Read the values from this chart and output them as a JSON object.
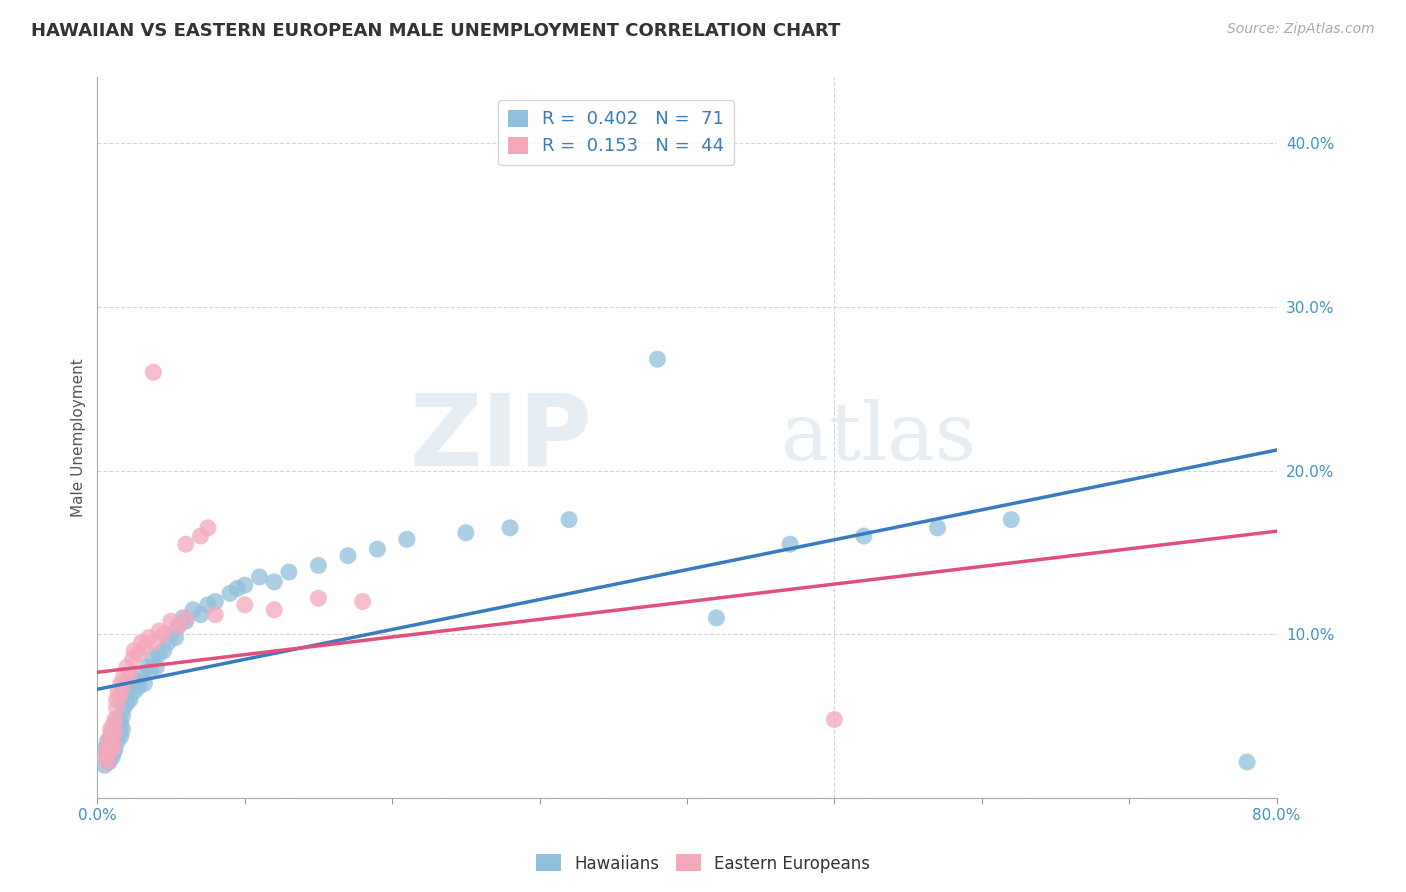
{
  "title": "HAWAIIAN VS EASTERN EUROPEAN MALE UNEMPLOYMENT CORRELATION CHART",
  "source": "Source: ZipAtlas.com",
  "ylabel": "Male Unemployment",
  "xmin": 0.0,
  "xmax": 0.8,
  "ymin": 0.0,
  "ymax": 0.44,
  "yticks": [
    0.0,
    0.1,
    0.2,
    0.3,
    0.4
  ],
  "ytick_labels": [
    "",
    "10.0%",
    "20.0%",
    "30.0%",
    "40.0%"
  ],
  "xticks": [
    0.0,
    0.8
  ],
  "legend_r1": "R =  0.402",
  "legend_n1": "N =  71",
  "legend_r2": "R =  0.153",
  "legend_n2": "N =  44",
  "blue_color": "#92bfdc",
  "pink_color": "#f4a8bc",
  "line_blue": "#3a7abf",
  "line_pink": "#e0507a",
  "watermark_zip": "ZIP",
  "watermark_atlas": "atlas",
  "hawaiians_x": [
    0.005,
    0.005,
    0.007,
    0.007,
    0.008,
    0.008,
    0.009,
    0.009,
    0.01,
    0.01,
    0.01,
    0.011,
    0.011,
    0.012,
    0.012,
    0.013,
    0.013,
    0.014,
    0.014,
    0.015,
    0.015,
    0.016,
    0.016,
    0.017,
    0.017,
    0.018,
    0.02,
    0.02,
    0.022,
    0.023,
    0.025,
    0.026,
    0.028,
    0.03,
    0.032,
    0.034,
    0.036,
    0.038,
    0.04,
    0.042,
    0.045,
    0.048,
    0.05,
    0.053,
    0.055,
    0.058,
    0.06,
    0.065,
    0.07,
    0.075,
    0.08,
    0.09,
    0.095,
    0.1,
    0.11,
    0.12,
    0.13,
    0.15,
    0.17,
    0.19,
    0.21,
    0.25,
    0.28,
    0.32,
    0.38,
    0.42,
    0.47,
    0.52,
    0.57,
    0.62,
    0.78
  ],
  "hawaiians_y": [
    0.02,
    0.03,
    0.025,
    0.035,
    0.028,
    0.022,
    0.03,
    0.038,
    0.025,
    0.032,
    0.04,
    0.028,
    0.035,
    0.042,
    0.03,
    0.038,
    0.045,
    0.035,
    0.042,
    0.04,
    0.048,
    0.038,
    0.045,
    0.042,
    0.05,
    0.055,
    0.058,
    0.065,
    0.06,
    0.07,
    0.065,
    0.072,
    0.068,
    0.075,
    0.07,
    0.08,
    0.078,
    0.085,
    0.08,
    0.088,
    0.09,
    0.095,
    0.1,
    0.098,
    0.105,
    0.11,
    0.108,
    0.115,
    0.112,
    0.118,
    0.12,
    0.125,
    0.128,
    0.13,
    0.135,
    0.132,
    0.138,
    0.142,
    0.148,
    0.152,
    0.158,
    0.162,
    0.165,
    0.17,
    0.268,
    0.11,
    0.155,
    0.16,
    0.165,
    0.17,
    0.022
  ],
  "eastern_x": [
    0.005,
    0.006,
    0.007,
    0.008,
    0.008,
    0.009,
    0.009,
    0.01,
    0.01,
    0.011,
    0.011,
    0.012,
    0.012,
    0.013,
    0.013,
    0.014,
    0.015,
    0.016,
    0.017,
    0.018,
    0.02,
    0.022,
    0.024,
    0.025,
    0.028,
    0.03,
    0.032,
    0.035,
    0.038,
    0.042,
    0.045,
    0.05,
    0.055,
    0.06,
    0.08,
    0.1,
    0.12,
    0.15,
    0.18,
    0.06,
    0.07,
    0.075,
    0.038,
    0.5
  ],
  "eastern_y": [
    0.025,
    0.03,
    0.022,
    0.035,
    0.028,
    0.038,
    0.042,
    0.03,
    0.038,
    0.045,
    0.032,
    0.048,
    0.04,
    0.055,
    0.06,
    0.065,
    0.062,
    0.07,
    0.068,
    0.075,
    0.08,
    0.075,
    0.085,
    0.09,
    0.088,
    0.095,
    0.092,
    0.098,
    0.095,
    0.102,
    0.1,
    0.108,
    0.105,
    0.11,
    0.112,
    0.118,
    0.115,
    0.122,
    0.12,
    0.155,
    0.16,
    0.165,
    0.26,
    0.048
  ]
}
